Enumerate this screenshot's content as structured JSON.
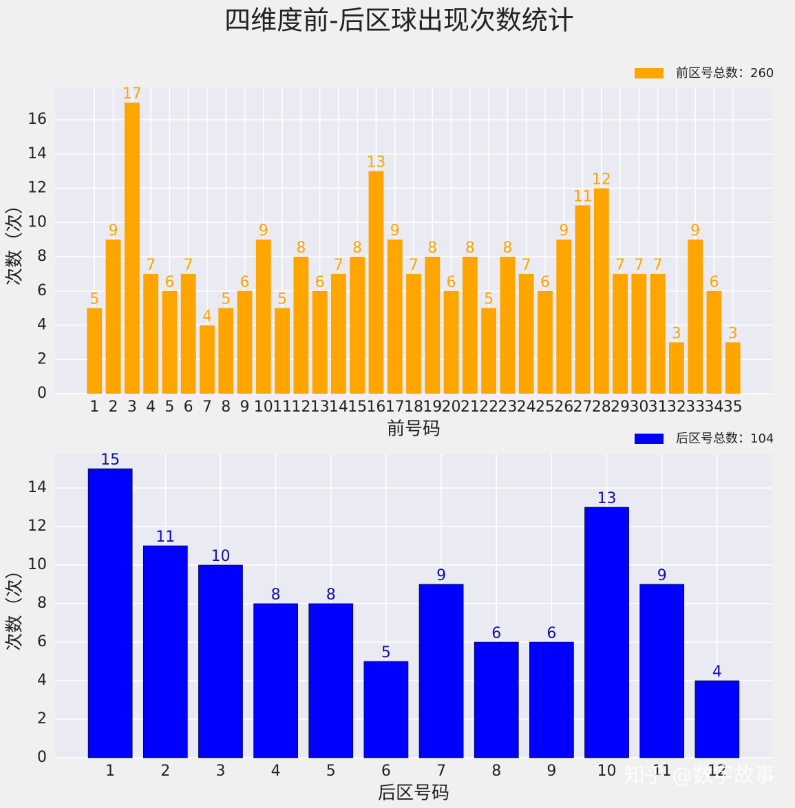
{
  "title": "四维度前-后区球出现次数统计",
  "watermark": "知乎 @数字故事",
  "chart_data": [
    {
      "type": "bar",
      "xlabel": "前号码",
      "ylabel": "次数（次）",
      "categories": [
        "1",
        "2",
        "3",
        "4",
        "5",
        "6",
        "7",
        "8",
        "9",
        "10",
        "11",
        "12",
        "13",
        "14",
        "15",
        "16",
        "17",
        "18",
        "19",
        "20",
        "21",
        "22",
        "23",
        "24",
        "25",
        "26",
        "27",
        "28",
        "29",
        "30",
        "31",
        "32",
        "33",
        "34",
        "35"
      ],
      "series": [
        {
          "name": "前区号总数：260",
          "color": "#ffa500",
          "values": [
            5,
            9,
            17,
            7,
            6,
            7,
            4,
            5,
            6,
            9,
            5,
            8,
            6,
            7,
            8,
            13,
            9,
            7,
            8,
            6,
            8,
            5,
            8,
            7,
            6,
            9,
            11,
            12,
            7,
            7,
            7,
            3,
            9,
            6,
            3
          ]
        }
      ],
      "ylim": [
        0,
        17.85
      ],
      "yticks": [
        0,
        2,
        4,
        6,
        8,
        10,
        12,
        14,
        16
      ],
      "grid": true,
      "legend": "upper right"
    },
    {
      "type": "bar",
      "xlabel": "后区号码",
      "ylabel": "次数（次）",
      "categories": [
        "1",
        "2",
        "3",
        "4",
        "5",
        "6",
        "7",
        "8",
        "9",
        "10",
        "11",
        "12"
      ],
      "series": [
        {
          "name": "后区号总数：104",
          "color": "#0000ff",
          "label_color": "#1010b0",
          "values": [
            15,
            11,
            10,
            8,
            8,
            5,
            9,
            6,
            6,
            13,
            9,
            4
          ]
        }
      ],
      "ylim": [
        0,
        15.75
      ],
      "yticks": [
        0,
        2,
        4,
        6,
        8,
        10,
        12,
        14
      ],
      "grid": true,
      "legend": "upper right"
    }
  ]
}
